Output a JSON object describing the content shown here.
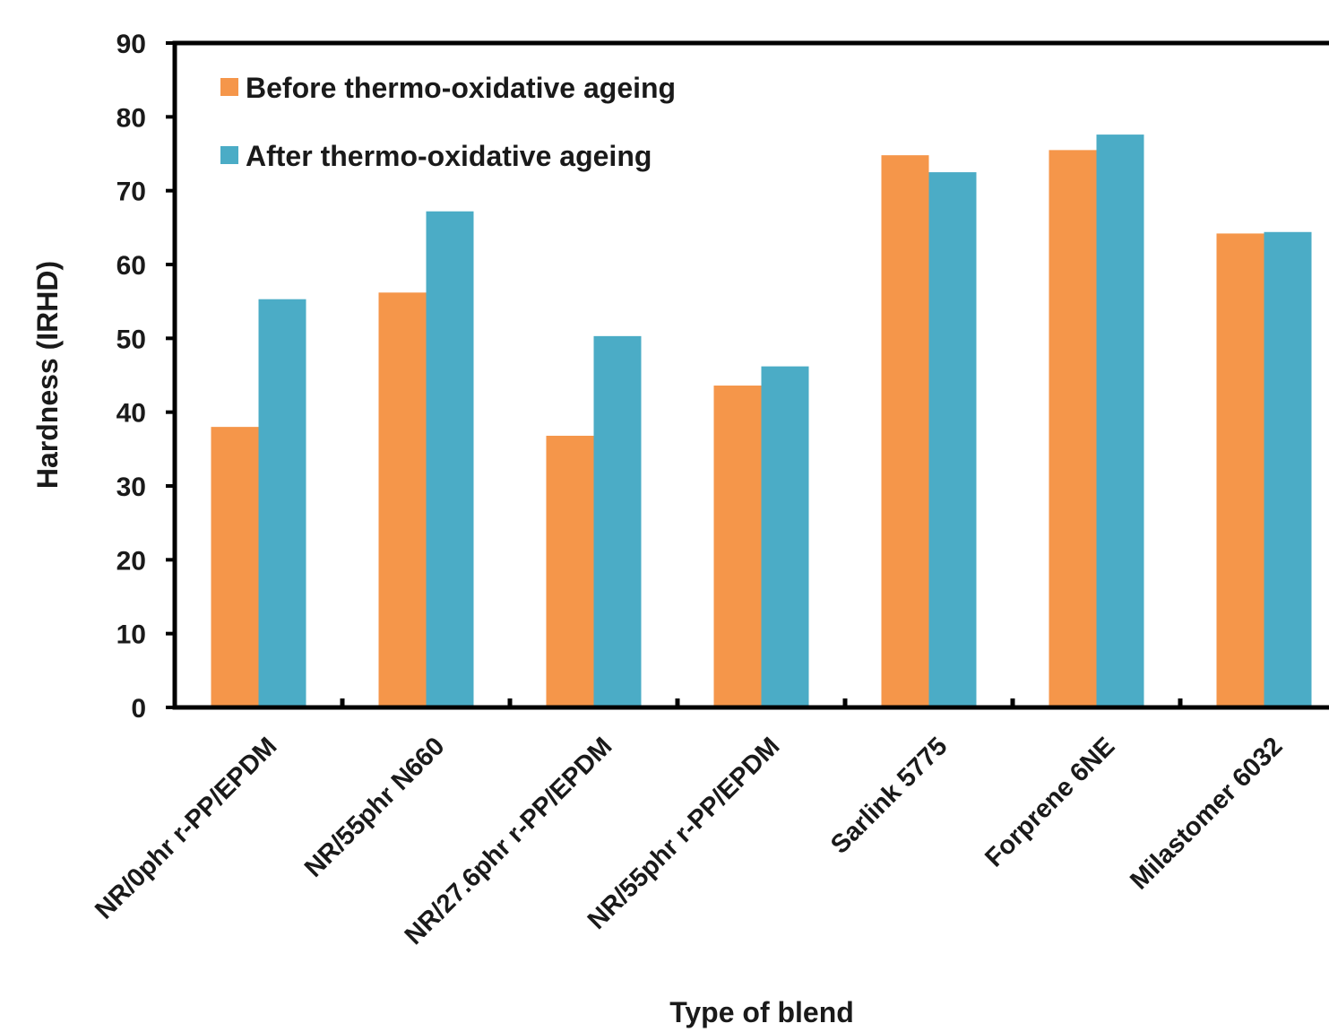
{
  "chart_data": {
    "type": "bar",
    "title": "",
    "xlabel": "Type of blend",
    "ylabel": "Hardness (IRHD)",
    "ylim": [
      0,
      90
    ],
    "yticks": [
      0,
      10,
      20,
      30,
      40,
      50,
      60,
      70,
      80,
      90
    ],
    "grid": false,
    "legend_position": "top-left",
    "categories": [
      "NR/0phr r-PP/EPDM",
      "NR/55phr N660",
      "NR/27.6phr r-PP/EPDM",
      "NR/55phr r-PP/EPDM",
      "Sarlink 5775",
      "Forprene 6NE",
      "Milastomer 6032"
    ],
    "series": [
      {
        "name": "Before thermo-oxidative ageing",
        "color": "#F5964A",
        "values": [
          38,
          56.2,
          36.8,
          43.6,
          74.8,
          75.5,
          64.2
        ]
      },
      {
        "name": "After thermo-oxidative ageing",
        "color": "#4BACC6",
        "values": [
          55.3,
          67.2,
          50.3,
          46.2,
          72.5,
          77.6,
          64.4
        ]
      }
    ]
  }
}
